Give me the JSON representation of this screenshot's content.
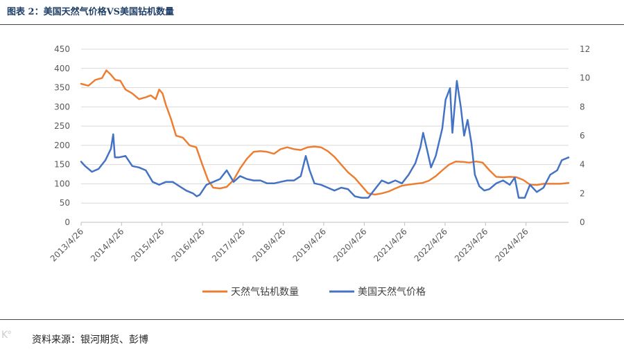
{
  "figure": {
    "title": "图表 2：美国天然气价格VS美国钻机数量",
    "source": "资料来源：银河期货、彭博"
  },
  "chart_data": {
    "type": "line",
    "x_axis": {
      "type": "date",
      "range": [
        "2013-04-26",
        "2025-05-15"
      ],
      "ticks": [
        "2013/4/26",
        "2014/4/26",
        "2015/4/26",
        "2016/4/26",
        "2017/4/26",
        "2018/4/26",
        "2019/4/26",
        "2020/4/26",
        "2021/4/26",
        "2022/4/26",
        "2023/4/26",
        "2024/4/26"
      ]
    },
    "y_axis_left": {
      "range": [
        0,
        450
      ],
      "ticks": [
        0,
        50,
        100,
        150,
        200,
        250,
        300,
        350,
        400,
        450
      ]
    },
    "y_axis_right": {
      "range": [
        0,
        12
      ],
      "ticks": [
        0,
        2,
        4,
        6,
        8,
        10,
        12
      ]
    },
    "grid": "horizontal",
    "legend": "bottom",
    "series": [
      {
        "name": "天然气钻机数量",
        "axis": "left",
        "color": "#ED7D31",
        "points": [
          [
            "2013-04-26",
            360
          ],
          [
            "2013-07-01",
            355
          ],
          [
            "2013-09-01",
            370
          ],
          [
            "2013-11-01",
            375
          ],
          [
            "2013-12-10",
            395
          ],
          [
            "2014-01-15",
            385
          ],
          [
            "2014-03-01",
            370
          ],
          [
            "2014-04-15",
            368
          ],
          [
            "2014-06-01",
            345
          ],
          [
            "2014-08-01",
            335
          ],
          [
            "2014-10-01",
            320
          ],
          [
            "2014-12-01",
            325
          ],
          [
            "2015-01-15",
            330
          ],
          [
            "2015-03-01",
            320
          ],
          [
            "2015-04-01",
            345
          ],
          [
            "2015-05-01",
            335
          ],
          [
            "2015-06-01",
            305
          ],
          [
            "2015-07-15",
            270
          ],
          [
            "2015-09-01",
            225
          ],
          [
            "2015-11-01",
            220
          ],
          [
            "2016-01-01",
            200
          ],
          [
            "2016-03-01",
            195
          ],
          [
            "2016-05-01",
            145
          ],
          [
            "2016-06-15",
            110
          ],
          [
            "2016-08-01",
            90
          ],
          [
            "2016-10-01",
            88
          ],
          [
            "2016-12-01",
            92
          ],
          [
            "2017-02-01",
            110
          ],
          [
            "2017-04-01",
            140
          ],
          [
            "2017-06-01",
            165
          ],
          [
            "2017-08-01",
            183
          ],
          [
            "2017-10-01",
            185
          ],
          [
            "2017-12-01",
            183
          ],
          [
            "2018-02-01",
            178
          ],
          [
            "2018-04-01",
            190
          ],
          [
            "2018-06-01",
            195
          ],
          [
            "2018-08-01",
            190
          ],
          [
            "2018-10-01",
            188
          ],
          [
            "2018-12-01",
            195
          ],
          [
            "2019-02-01",
            197
          ],
          [
            "2019-04-01",
            195
          ],
          [
            "2019-06-01",
            185
          ],
          [
            "2019-08-01",
            170
          ],
          [
            "2019-10-01",
            150
          ],
          [
            "2019-12-01",
            130
          ],
          [
            "2020-02-01",
            115
          ],
          [
            "2020-04-01",
            95
          ],
          [
            "2020-06-01",
            75
          ],
          [
            "2020-08-01",
            72
          ],
          [
            "2020-10-01",
            75
          ],
          [
            "2020-12-01",
            80
          ],
          [
            "2021-02-01",
            88
          ],
          [
            "2021-04-01",
            95
          ],
          [
            "2021-06-01",
            98
          ],
          [
            "2021-08-01",
            100
          ],
          [
            "2021-10-01",
            102
          ],
          [
            "2021-12-01",
            108
          ],
          [
            "2022-02-01",
            120
          ],
          [
            "2022-04-01",
            135
          ],
          [
            "2022-06-01",
            150
          ],
          [
            "2022-08-01",
            158
          ],
          [
            "2022-10-01",
            157
          ],
          [
            "2022-12-01",
            155
          ],
          [
            "2023-02-01",
            158
          ],
          [
            "2023-04-01",
            155
          ],
          [
            "2023-06-01",
            135
          ],
          [
            "2023-08-01",
            118
          ],
          [
            "2023-10-01",
            117
          ],
          [
            "2023-12-01",
            118
          ],
          [
            "2024-02-01",
            117
          ],
          [
            "2024-04-01",
            110
          ],
          [
            "2024-06-01",
            98
          ],
          [
            "2024-08-01",
            97
          ],
          [
            "2024-10-01",
            100
          ],
          [
            "2024-12-01",
            100
          ],
          [
            "2025-03-01",
            100
          ],
          [
            "2025-05-15",
            102
          ]
        ]
      },
      {
        "name": "美国天然气价格",
        "axis": "right",
        "color": "#4472C4",
        "points": [
          [
            "2013-04-26",
            4.2
          ],
          [
            "2013-06-01",
            3.9
          ],
          [
            "2013-08-01",
            3.5
          ],
          [
            "2013-10-01",
            3.7
          ],
          [
            "2013-12-01",
            4.3
          ],
          [
            "2014-01-20",
            5.1
          ],
          [
            "2014-02-10",
            6.1
          ],
          [
            "2014-02-25",
            4.5
          ],
          [
            "2014-04-01",
            4.5
          ],
          [
            "2014-06-01",
            4.6
          ],
          [
            "2014-08-01",
            3.9
          ],
          [
            "2014-10-01",
            3.8
          ],
          [
            "2014-12-01",
            3.6
          ],
          [
            "2015-02-01",
            2.8
          ],
          [
            "2015-04-01",
            2.6
          ],
          [
            "2015-06-01",
            2.8
          ],
          [
            "2015-08-01",
            2.8
          ],
          [
            "2015-10-01",
            2.5
          ],
          [
            "2015-12-01",
            2.2
          ],
          [
            "2016-02-01",
            2.0
          ],
          [
            "2016-03-05",
            1.8
          ],
          [
            "2016-04-01",
            1.9
          ],
          [
            "2016-06-01",
            2.6
          ],
          [
            "2016-08-01",
            2.8
          ],
          [
            "2016-10-01",
            3.0
          ],
          [
            "2016-12-01",
            3.6
          ],
          [
            "2017-02-01",
            2.8
          ],
          [
            "2017-04-01",
            3.2
          ],
          [
            "2017-06-01",
            3.0
          ],
          [
            "2017-08-01",
            2.9
          ],
          [
            "2017-10-01",
            2.9
          ],
          [
            "2017-12-01",
            2.7
          ],
          [
            "2018-02-01",
            2.7
          ],
          [
            "2018-04-01",
            2.8
          ],
          [
            "2018-06-01",
            2.9
          ],
          [
            "2018-08-01",
            2.9
          ],
          [
            "2018-10-01",
            3.2
          ],
          [
            "2018-11-15",
            4.6
          ],
          [
            "2018-12-20",
            3.6
          ],
          [
            "2019-02-01",
            2.7
          ],
          [
            "2019-04-01",
            2.6
          ],
          [
            "2019-06-01",
            2.4
          ],
          [
            "2019-08-01",
            2.2
          ],
          [
            "2019-10-01",
            2.4
          ],
          [
            "2019-12-01",
            2.3
          ],
          [
            "2020-02-01",
            1.8
          ],
          [
            "2020-04-01",
            1.7
          ],
          [
            "2020-06-01",
            1.7
          ],
          [
            "2020-08-01",
            2.3
          ],
          [
            "2020-10-01",
            2.9
          ],
          [
            "2020-12-01",
            2.7
          ],
          [
            "2021-02-01",
            2.9
          ],
          [
            "2021-04-01",
            2.7
          ],
          [
            "2021-06-01",
            3.3
          ],
          [
            "2021-08-01",
            4.1
          ],
          [
            "2021-09-15",
            5.2
          ],
          [
            "2021-10-10",
            6.2
          ],
          [
            "2021-11-15",
            5.0
          ],
          [
            "2021-12-20",
            3.8
          ],
          [
            "2022-02-01",
            4.6
          ],
          [
            "2022-04-01",
            6.5
          ],
          [
            "2022-05-01",
            8.5
          ],
          [
            "2022-06-10",
            9.3
          ],
          [
            "2022-07-01",
            6.2
          ],
          [
            "2022-08-10",
            9.8
          ],
          [
            "2022-09-15",
            8.0
          ],
          [
            "2022-10-15",
            6.0
          ],
          [
            "2022-11-15",
            7.1
          ],
          [
            "2022-12-20",
            5.5
          ],
          [
            "2023-01-20",
            3.3
          ],
          [
            "2023-03-01",
            2.5
          ],
          [
            "2023-04-15",
            2.2
          ],
          [
            "2023-06-01",
            2.3
          ],
          [
            "2023-08-01",
            2.7
          ],
          [
            "2023-10-01",
            2.9
          ],
          [
            "2023-12-01",
            2.6
          ],
          [
            "2024-01-15",
            3.1
          ],
          [
            "2024-02-20",
            1.7
          ],
          [
            "2024-04-15",
            1.7
          ],
          [
            "2024-06-01",
            2.6
          ],
          [
            "2024-08-01",
            2.1
          ],
          [
            "2024-10-01",
            2.4
          ],
          [
            "2024-12-01",
            3.3
          ],
          [
            "2025-02-01",
            3.6
          ],
          [
            "2025-03-15",
            4.3
          ],
          [
            "2025-05-15",
            4.5
          ]
        ]
      }
    ]
  }
}
